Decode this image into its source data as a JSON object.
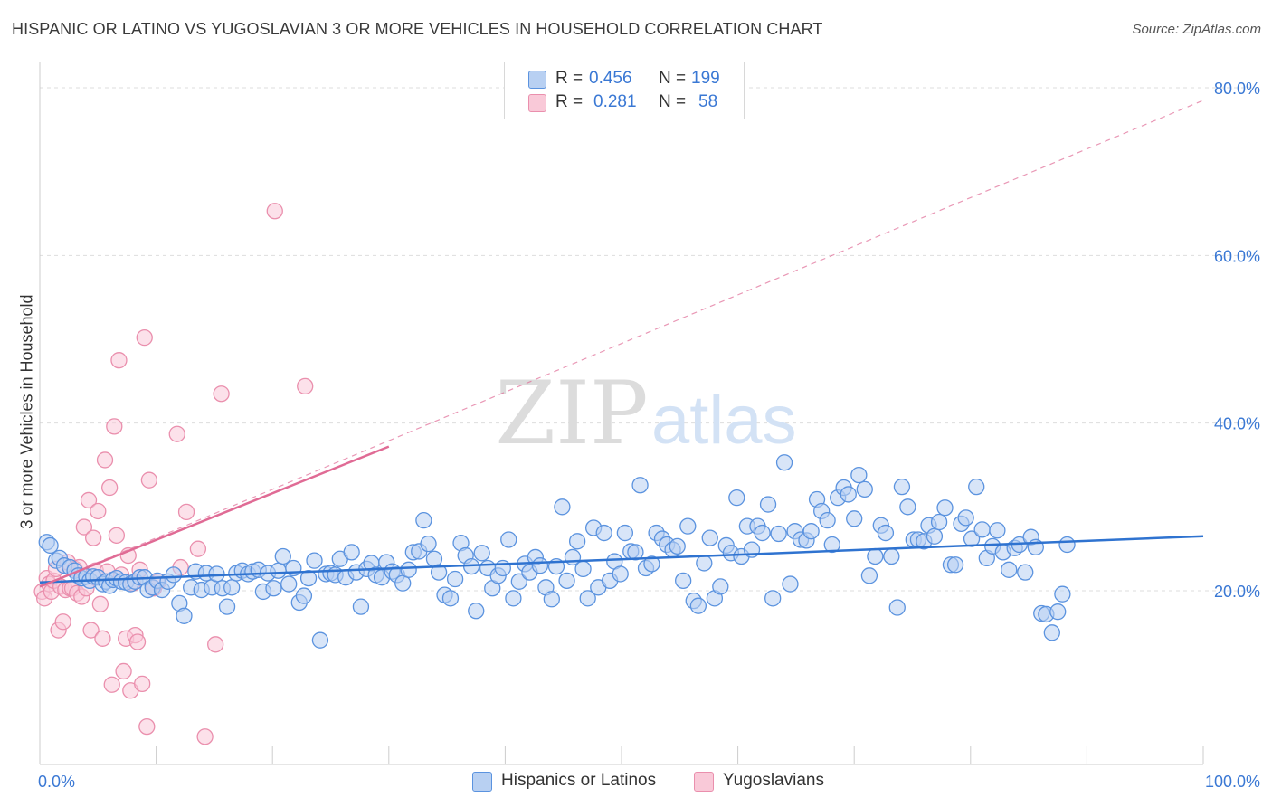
{
  "header": {
    "title": "HISPANIC OR LATINO VS YUGOSLAVIAN 3 OR MORE VEHICLES IN HOUSEHOLD CORRELATION CHART",
    "source": "Source: ZipAtlas.com"
  },
  "watermark": {
    "zip": "ZIP",
    "atlas": "atlas"
  },
  "legend_top": {
    "rows": [
      {
        "r_label": "R =",
        "r_value": "0.456",
        "n_label": "N =",
        "n_value": "199"
      },
      {
        "r_label": "R =",
        "r_value": "0.281",
        "n_label": "N =",
        "n_value": "58"
      }
    ]
  },
  "legend_bottom": {
    "items": [
      {
        "label": "Hispanics or Latinos"
      },
      {
        "label": "Yugoslavians"
      }
    ]
  },
  "colors": {
    "blue_fill": "#b8d0f2",
    "blue_stroke": "#5b93df",
    "blue_line": "#2f73d0",
    "pink_fill": "#f9c9d8",
    "pink_stroke": "#ea8fad",
    "pink_line": "#e06b95",
    "grid": "#dddddd",
    "tick_label": "#3a78d4"
  },
  "chart_data": {
    "type": "scatter",
    "title": "HISPANIC OR LATINO VS YUGOSLAVIAN 3 OR MORE VEHICLES IN HOUSEHOLD CORRELATION CHART",
    "xlabel": "",
    "ylabel": "3 or more Vehicles in Household",
    "xlim": [
      0,
      100
    ],
    "ylim": [
      0,
      82
    ],
    "x_tick_labels": [
      "0.0%",
      "100.0%"
    ],
    "y_ticks": [
      20,
      40,
      60,
      80
    ],
    "y_tick_labels": [
      "20.0%",
      "40.0%",
      "60.0%",
      "80.0%"
    ],
    "grid": true,
    "legend_position": "top-center",
    "series": [
      {
        "name": "Hispanics or Latinos",
        "color": "#5b93df",
        "trend": {
          "x": [
            0,
            100
          ],
          "y": [
            21.0,
            26.5
          ],
          "style": "solid"
        },
        "points": [
          [
            0.6,
            25.8
          ],
          [
            0.9,
            25.4
          ],
          [
            1.4,
            23.6
          ],
          [
            1.7,
            23.9
          ],
          [
            2.1,
            23
          ],
          [
            2.6,
            22.8
          ],
          [
            3,
            22.4
          ],
          [
            3.3,
            21.8
          ],
          [
            3.6,
            21.5
          ],
          [
            4,
            21.7
          ],
          [
            4.3,
            21.2
          ],
          [
            4.6,
            21.7
          ],
          [
            5,
            21.6
          ],
          [
            5.4,
            20.8
          ],
          [
            5.7,
            21.1
          ],
          [
            6,
            20.6
          ],
          [
            6.3,
            21.3
          ],
          [
            6.6,
            21.5
          ],
          [
            7,
            21.1
          ],
          [
            7.4,
            21
          ],
          [
            7.8,
            20.8
          ],
          [
            8.2,
            21.1
          ],
          [
            8.6,
            21.6
          ],
          [
            9,
            21.6
          ],
          [
            9.3,
            20.1
          ],
          [
            9.7,
            20.4
          ],
          [
            10.1,
            21.2
          ],
          [
            10.5,
            20.1
          ],
          [
            11,
            21.1
          ],
          [
            11.5,
            21.9
          ],
          [
            12,
            18.5
          ],
          [
            12.4,
            17
          ],
          [
            13,
            20.4
          ],
          [
            13.4,
            22.3
          ],
          [
            13.9,
            20.1
          ],
          [
            14.3,
            22.1
          ],
          [
            14.8,
            20.4
          ],
          [
            15.2,
            22
          ],
          [
            15.7,
            20.3
          ],
          [
            16.1,
            18.1
          ],
          [
            16.5,
            20.4
          ],
          [
            16.9,
            22.1
          ],
          [
            17.4,
            22.4
          ],
          [
            17.9,
            22
          ],
          [
            18.3,
            22.3
          ],
          [
            18.8,
            22.5
          ],
          [
            19.2,
            19.9
          ],
          [
            19.6,
            22.1
          ],
          [
            20.1,
            20.3
          ],
          [
            20.5,
            22.4
          ],
          [
            20.9,
            24.1
          ],
          [
            21.4,
            20.8
          ],
          [
            21.8,
            22.7
          ],
          [
            22.3,
            18.6
          ],
          [
            22.7,
            19.4
          ],
          [
            23.1,
            21.5
          ],
          [
            23.6,
            23.6
          ],
          [
            24.1,
            14.1
          ],
          [
            24.6,
            22
          ],
          [
            25,
            22.1
          ],
          [
            25.4,
            21.9
          ],
          [
            25.8,
            23.8
          ],
          [
            26.3,
            21.6
          ],
          [
            26.8,
            24.6
          ],
          [
            27.2,
            22.2
          ],
          [
            27.6,
            18.1
          ],
          [
            28.1,
            22.6
          ],
          [
            28.5,
            23.3
          ],
          [
            28.9,
            21.9
          ],
          [
            29.4,
            21.6
          ],
          [
            29.8,
            23.4
          ],
          [
            30.3,
            22.3
          ],
          [
            30.7,
            21.9
          ],
          [
            31.2,
            20.9
          ],
          [
            31.7,
            22.5
          ],
          [
            32.1,
            24.6
          ],
          [
            32.6,
            24.7
          ],
          [
            33,
            28.4
          ],
          [
            33.4,
            25.6
          ],
          [
            33.9,
            23.8
          ],
          [
            34.3,
            22.2
          ],
          [
            34.8,
            19.5
          ],
          [
            35.3,
            19.1
          ],
          [
            35.7,
            21.4
          ],
          [
            36.2,
            25.7
          ],
          [
            36.6,
            24.2
          ],
          [
            37.1,
            22.9
          ],
          [
            37.5,
            17.6
          ],
          [
            38,
            24.5
          ],
          [
            38.5,
            22.7
          ],
          [
            38.9,
            20.3
          ],
          [
            39.4,
            21.8
          ],
          [
            39.8,
            22.7
          ],
          [
            40.3,
            26.1
          ],
          [
            40.7,
            19.1
          ],
          [
            41.2,
            21.1
          ],
          [
            41.7,
            23.2
          ],
          [
            42.1,
            22.2
          ],
          [
            42.6,
            24
          ],
          [
            43,
            23
          ],
          [
            43.5,
            20.4
          ],
          [
            44,
            19
          ],
          [
            44.4,
            22.9
          ],
          [
            44.9,
            30
          ],
          [
            45.3,
            21.2
          ],
          [
            45.8,
            24
          ],
          [
            46.2,
            25.9
          ],
          [
            46.7,
            22.6
          ],
          [
            47.1,
            19.1
          ],
          [
            47.6,
            27.5
          ],
          [
            48,
            20.4
          ],
          [
            48.5,
            26.9
          ],
          [
            49,
            21.2
          ],
          [
            49.4,
            23.5
          ],
          [
            49.9,
            22
          ],
          [
            50.3,
            26.9
          ],
          [
            50.8,
            24.7
          ],
          [
            51.2,
            24.6
          ],
          [
            51.6,
            32.6
          ],
          [
            52.1,
            22.7
          ],
          [
            52.6,
            23.2
          ],
          [
            53,
            26.9
          ],
          [
            53.5,
            26.2
          ],
          [
            53.9,
            25.5
          ],
          [
            54.4,
            24.9
          ],
          [
            54.8,
            25.3
          ],
          [
            55.3,
            21.2
          ],
          [
            55.7,
            27.7
          ],
          [
            56.2,
            18.8
          ],
          [
            56.6,
            18.2
          ],
          [
            57.1,
            23.3
          ],
          [
            57.6,
            26.3
          ],
          [
            58,
            19.1
          ],
          [
            58.5,
            20.5
          ],
          [
            59,
            25.4
          ],
          [
            59.4,
            24.5
          ],
          [
            59.9,
            31.1
          ],
          [
            60.3,
            24.1
          ],
          [
            60.8,
            27.7
          ],
          [
            61.2,
            24.9
          ],
          [
            61.7,
            27.7
          ],
          [
            62.1,
            26.9
          ],
          [
            62.6,
            30.3
          ],
          [
            63,
            19.1
          ],
          [
            63.5,
            26.8
          ],
          [
            64,
            35.3
          ],
          [
            64.5,
            20.8
          ],
          [
            64.9,
            27.1
          ],
          [
            65.4,
            26.1
          ],
          [
            65.9,
            26
          ],
          [
            66.3,
            27.1
          ],
          [
            66.8,
            30.9
          ],
          [
            67.2,
            29.5
          ],
          [
            67.7,
            28.4
          ],
          [
            68.1,
            25.5
          ],
          [
            68.6,
            31.1
          ],
          [
            69.1,
            32.3
          ],
          [
            69.5,
            31.5
          ],
          [
            70,
            28.6
          ],
          [
            70.4,
            33.8
          ],
          [
            70.9,
            32.1
          ],
          [
            71.3,
            21.8
          ],
          [
            71.8,
            24.1
          ],
          [
            72.3,
            27.8
          ],
          [
            72.7,
            26.9
          ],
          [
            73.2,
            24.1
          ],
          [
            73.7,
            18
          ],
          [
            74.1,
            32.4
          ],
          [
            74.6,
            30
          ],
          [
            75.1,
            26.1
          ],
          [
            75.5,
            26.1
          ],
          [
            76,
            25.9
          ],
          [
            76.4,
            27.8
          ],
          [
            76.9,
            26.5
          ],
          [
            77.3,
            28.2
          ],
          [
            77.8,
            29.9
          ],
          [
            78.3,
            23.1
          ],
          [
            78.7,
            23.1
          ],
          [
            79.2,
            28
          ],
          [
            79.6,
            28.7
          ],
          [
            80.1,
            26.2
          ],
          [
            80.5,
            32.4
          ],
          [
            81,
            27.3
          ],
          [
            81.4,
            23.9
          ],
          [
            81.9,
            25.3
          ],
          [
            82.3,
            27.2
          ],
          [
            82.8,
            24.6
          ],
          [
            83.3,
            22.5
          ],
          [
            83.8,
            25.1
          ],
          [
            84.2,
            25.5
          ],
          [
            84.7,
            22.2
          ],
          [
            85.2,
            26.4
          ],
          [
            85.6,
            25.2
          ],
          [
            86.1,
            17.3
          ],
          [
            86.5,
            17.2
          ],
          [
            87,
            15
          ],
          [
            87.5,
            17.5
          ],
          [
            87.9,
            19.6
          ],
          [
            88.3,
            25.5
          ]
        ]
      },
      {
        "name": "Yugoslavians",
        "color": "#ea8fad",
        "trend": {
          "x": [
            0,
            30
          ],
          "y": [
            20.5,
            37.2
          ],
          "style": "solid",
          "extended": {
            "x": [
              0,
              100
            ],
            "y": [
              20.5,
              78.5
            ],
            "style": "dashed"
          }
        },
        "points": [
          [
            0.2,
            19.9
          ],
          [
            0.4,
            19.1
          ],
          [
            0.6,
            21.5
          ],
          [
            0.8,
            20.8
          ],
          [
            1,
            19.9
          ],
          [
            1.2,
            21.2
          ],
          [
            1.4,
            22.6
          ],
          [
            1.6,
            15.3
          ],
          [
            1.8,
            20.5
          ],
          [
            2,
            16.3
          ],
          [
            2.2,
            20.1
          ],
          [
            2.4,
            23.4
          ],
          [
            2.6,
            20.3
          ],
          [
            2.8,
            20.3
          ],
          [
            3,
            22.6
          ],
          [
            3.2,
            19.7
          ],
          [
            3.4,
            22.8
          ],
          [
            3.6,
            19.3
          ],
          [
            3.8,
            27.6
          ],
          [
            4,
            20.3
          ],
          [
            4.2,
            30.8
          ],
          [
            4.4,
            15.3
          ],
          [
            4.6,
            26.3
          ],
          [
            4.8,
            22.4
          ],
          [
            5,
            29.5
          ],
          [
            5.2,
            18.4
          ],
          [
            5.4,
            14.3
          ],
          [
            5.6,
            35.6
          ],
          [
            5.8,
            22.3
          ],
          [
            6,
            32.3
          ],
          [
            6.2,
            8.8
          ],
          [
            6.4,
            39.6
          ],
          [
            6.6,
            26.6
          ],
          [
            6.8,
            47.5
          ],
          [
            7,
            21.9
          ],
          [
            7.2,
            10.4
          ],
          [
            7.4,
            14.3
          ],
          [
            7.6,
            24.2
          ],
          [
            7.8,
            8.1
          ],
          [
            8,
            20.9
          ],
          [
            8.2,
            14.7
          ],
          [
            8.4,
            13.9
          ],
          [
            8.6,
            22.5
          ],
          [
            8.8,
            8.9
          ],
          [
            9,
            50.2
          ],
          [
            9.2,
            3.8
          ],
          [
            9.4,
            33.2
          ],
          [
            9.8,
            20.3
          ],
          [
            10.2,
            21.1
          ],
          [
            11.8,
            38.7
          ],
          [
            12.1,
            22.8
          ],
          [
            12.6,
            29.4
          ],
          [
            13.6,
            25
          ],
          [
            14.2,
            2.6
          ],
          [
            15.1,
            13.6
          ],
          [
            15.6,
            43.5
          ],
          [
            20.2,
            65.3
          ],
          [
            22.8,
            44.4
          ]
        ]
      }
    ]
  }
}
